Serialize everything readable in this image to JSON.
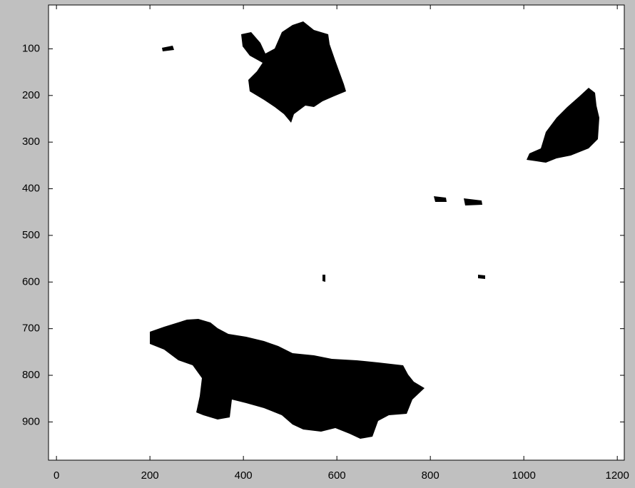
{
  "chart_data": {
    "type": "image",
    "xlim": [
      -17,
      1215
    ],
    "ylim": [
      6,
      982
    ],
    "y_reversed": true,
    "xticks": [
      0,
      200,
      400,
      600,
      800,
      1000,
      1200
    ],
    "yticks": [
      100,
      200,
      300,
      400,
      500,
      600,
      700,
      800,
      900
    ]
  }
}
